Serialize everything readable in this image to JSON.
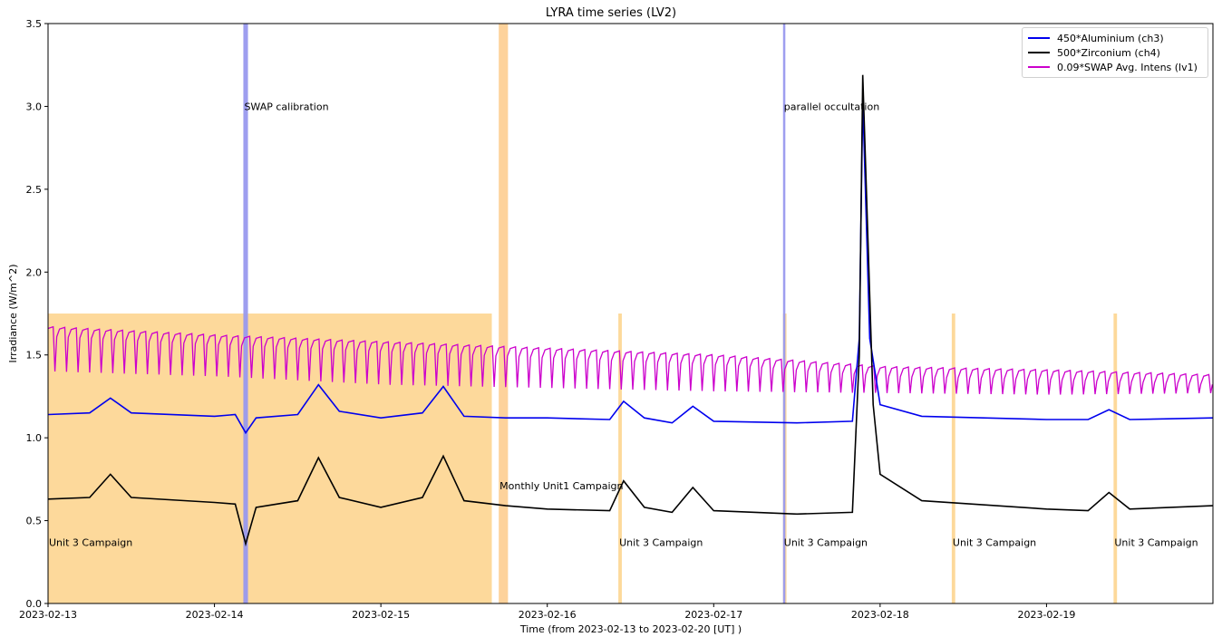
{
  "chart_data": {
    "type": "line",
    "title": "LYRA time series (LV2)",
    "xlabel": "Time (from 2023-02-13 to 2023-02-20 [UT] )",
    "ylabel": "Irradiance (W/m^2)",
    "xlim": [
      "2023-02-13T00:00",
      "2023-02-20T00:00"
    ],
    "ylim": [
      0,
      3.5
    ],
    "x_ticks": [
      "2023-02-13",
      "2023-02-14",
      "2023-02-15",
      "2023-02-16",
      "2023-02-17",
      "2023-02-18",
      "2023-02-19"
    ],
    "y_ticks": [
      "0.0",
      "0.5",
      "1.0",
      "1.5",
      "2.0",
      "2.5",
      "3.0",
      "3.5"
    ],
    "grid": false,
    "legend_position": "top-right",
    "series": [
      {
        "name": "450*Aluminium (ch3)",
        "color": "#0000ee",
        "points": [
          [
            "2023-02-13T00:00",
            1.14
          ],
          [
            "2023-02-13T06:00",
            1.15
          ],
          [
            "2023-02-13T09:00",
            1.24
          ],
          [
            "2023-02-13T12:00",
            1.15
          ],
          [
            "2023-02-14T00:00",
            1.13
          ],
          [
            "2023-02-14T03:00",
            1.14
          ],
          [
            "2023-02-14T04:30",
            1.03
          ],
          [
            "2023-02-14T06:00",
            1.12
          ],
          [
            "2023-02-14T12:00",
            1.14
          ],
          [
            "2023-02-14T15:00",
            1.32
          ],
          [
            "2023-02-14T18:00",
            1.16
          ],
          [
            "2023-02-15T00:00",
            1.12
          ],
          [
            "2023-02-15T06:00",
            1.15
          ],
          [
            "2023-02-15T09:00",
            1.31
          ],
          [
            "2023-02-15T12:00",
            1.13
          ],
          [
            "2023-02-15T18:00",
            1.12
          ],
          [
            "2023-02-16T00:00",
            1.12
          ],
          [
            "2023-02-16T09:00",
            1.11
          ],
          [
            "2023-02-16T11:00",
            1.22
          ],
          [
            "2023-02-16T14:00",
            1.12
          ],
          [
            "2023-02-16T18:00",
            1.09
          ],
          [
            "2023-02-16T21:00",
            1.19
          ],
          [
            "2023-02-17T00:00",
            1.1
          ],
          [
            "2023-02-17T12:00",
            1.09
          ],
          [
            "2023-02-17T20:00",
            1.1
          ],
          [
            "2023-02-17T21:00",
            1.6
          ],
          [
            "2023-02-17T21:30",
            3.05
          ],
          [
            "2023-02-17T22:30",
            1.6
          ],
          [
            "2023-02-18T00:00",
            1.2
          ],
          [
            "2023-02-18T06:00",
            1.13
          ],
          [
            "2023-02-19T00:00",
            1.11
          ],
          [
            "2023-02-19T06:00",
            1.11
          ],
          [
            "2023-02-19T09:00",
            1.17
          ],
          [
            "2023-02-19T12:00",
            1.11
          ],
          [
            "2023-02-20T00:00",
            1.12
          ]
        ]
      },
      {
        "name": "500*Zirconium (ch4)",
        "color": "#000000",
        "points": [
          [
            "2023-02-13T00:00",
            0.63
          ],
          [
            "2023-02-13T06:00",
            0.64
          ],
          [
            "2023-02-13T09:00",
            0.78
          ],
          [
            "2023-02-13T12:00",
            0.64
          ],
          [
            "2023-02-14T00:00",
            0.61
          ],
          [
            "2023-02-14T03:00",
            0.6
          ],
          [
            "2023-02-14T04:30",
            0.36
          ],
          [
            "2023-02-14T06:00",
            0.58
          ],
          [
            "2023-02-14T12:00",
            0.62
          ],
          [
            "2023-02-14T15:00",
            0.88
          ],
          [
            "2023-02-14T18:00",
            0.64
          ],
          [
            "2023-02-15T00:00",
            0.58
          ],
          [
            "2023-02-15T06:00",
            0.64
          ],
          [
            "2023-02-15T09:00",
            0.89
          ],
          [
            "2023-02-15T12:00",
            0.62
          ],
          [
            "2023-02-15T18:00",
            0.59
          ],
          [
            "2023-02-16T00:00",
            0.57
          ],
          [
            "2023-02-16T09:00",
            0.56
          ],
          [
            "2023-02-16T11:00",
            0.74
          ],
          [
            "2023-02-16T14:00",
            0.58
          ],
          [
            "2023-02-16T18:00",
            0.55
          ],
          [
            "2023-02-16T21:00",
            0.7
          ],
          [
            "2023-02-17T00:00",
            0.56
          ],
          [
            "2023-02-17T12:00",
            0.54
          ],
          [
            "2023-02-17T20:00",
            0.55
          ],
          [
            "2023-02-17T21:00",
            1.5
          ],
          [
            "2023-02-17T21:30",
            3.19
          ],
          [
            "2023-02-17T23:00",
            1.2
          ],
          [
            "2023-02-18T00:00",
            0.78
          ],
          [
            "2023-02-18T06:00",
            0.62
          ],
          [
            "2023-02-19T00:00",
            0.57
          ],
          [
            "2023-02-19T06:00",
            0.56
          ],
          [
            "2023-02-19T09:00",
            0.67
          ],
          [
            "2023-02-19T12:00",
            0.57
          ],
          [
            "2023-02-20T00:00",
            0.59
          ]
        ]
      },
      {
        "name": "0.09*SWAP Avg. Intens (lv1)",
        "color": "#cc00cc",
        "cadence_minutes": 100,
        "baseline": [
          [
            "2023-02-13T00:00",
            1.66
          ],
          [
            "2023-02-14T00:00",
            1.61
          ],
          [
            "2023-02-15T00:00",
            1.57
          ],
          [
            "2023-02-16T00:00",
            1.53
          ],
          [
            "2023-02-17T00:00",
            1.49
          ],
          [
            "2023-02-18T00:00",
            1.42
          ],
          [
            "2023-02-19T00:00",
            1.4
          ],
          [
            "2023-02-20T00:00",
            1.37
          ]
        ],
        "dip_minimum": [
          [
            "2023-02-13T00:00",
            1.4
          ],
          [
            "2023-02-14T00:00",
            1.37
          ],
          [
            "2023-02-15T00:00",
            1.32
          ],
          [
            "2023-02-16T00:00",
            1.3
          ],
          [
            "2023-02-17T00:00",
            1.28
          ],
          [
            "2023-02-18T00:00",
            1.27
          ],
          [
            "2023-02-19T00:00",
            1.26
          ],
          [
            "2023-02-20T00:00",
            1.27
          ]
        ]
      }
    ],
    "shaded_regions": [
      {
        "x": [
          "2023-02-13T00:00",
          "2023-02-15T16:00"
        ],
        "ymax": 1.75,
        "color": "#fdd99b",
        "label": "Unit 3 Campaign"
      },
      {
        "x": [
          "2023-02-15T17:00",
          "2023-02-15T18:20"
        ],
        "ymax": 3.5,
        "color": "#fdd29b",
        "label": "Monthly Unit1 Campaign"
      },
      {
        "x": [
          "2023-02-16T10:15",
          "2023-02-16T10:45"
        ],
        "ymax": 1.75,
        "color": "#fdd99b",
        "label": "Unit 3 Campaign"
      },
      {
        "x": [
          "2023-02-17T10:00",
          "2023-02-17T10:30"
        ],
        "ymax": 1.75,
        "color": "#fdd99b",
        "label": "Unit 3 Campaign"
      },
      {
        "x": [
          "2023-02-18T10:20",
          "2023-02-18T10:50"
        ],
        "ymax": 1.75,
        "color": "#fdd99b",
        "label": "Unit 3 Campaign"
      },
      {
        "x": [
          "2023-02-19T09:40",
          "2023-02-19T10:10"
        ],
        "ymax": 1.75,
        "color": "#fdd99b",
        "label": "Unit 3 Campaign"
      },
      {
        "x": [
          "2023-02-14T04:10",
          "2023-02-14T04:50"
        ],
        "ymax": 3.5,
        "color": "#9999ee",
        "label": "SWAP calibration"
      },
      {
        "x": [
          "2023-02-17T10:00",
          "2023-02-17T10:20"
        ],
        "ymax": 3.5,
        "color": "#9999ee",
        "label": "parallel occultation"
      }
    ]
  }
}
